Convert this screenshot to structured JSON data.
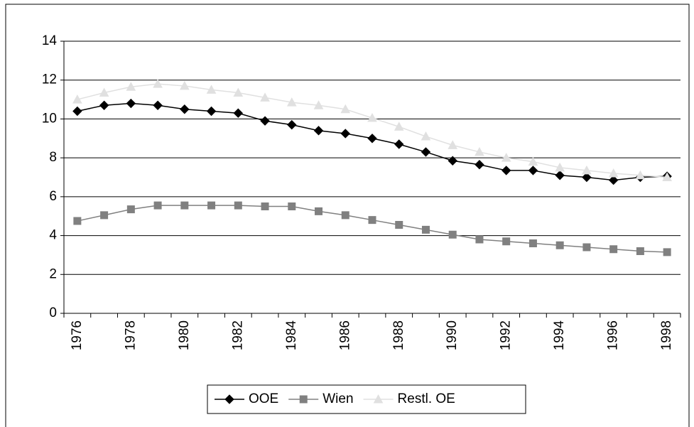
{
  "chart_data": {
    "type": "line",
    "categories": [
      "1976",
      null,
      "1978",
      null,
      "1980",
      null,
      "1982",
      null,
      "1984",
      null,
      "1986",
      null,
      "1988",
      null,
      "1990",
      null,
      "1992",
      null,
      "1994",
      null,
      "1996",
      null,
      "1998"
    ],
    "series": [
      {
        "name": "OOE",
        "color": "#000000",
        "marker": "diamond",
        "values": [
          10.4,
          10.7,
          10.8,
          10.7,
          10.5,
          10.4,
          10.3,
          9.9,
          9.7,
          9.4,
          9.25,
          9.0,
          8.7,
          8.3,
          7.85,
          7.65,
          7.35,
          7.35,
          7.1,
          7.0,
          6.85,
          7.0,
          7.05
        ]
      },
      {
        "name": "Wien",
        "color": "#808080",
        "marker": "square",
        "values": [
          4.75,
          5.05,
          5.35,
          5.55,
          5.55,
          5.55,
          5.55,
          5.5,
          5.5,
          5.25,
          5.05,
          4.8,
          4.55,
          4.3,
          4.05,
          3.8,
          3.7,
          3.6,
          3.5,
          3.4,
          3.3,
          3.2,
          3.15
        ]
      },
      {
        "name": "Restl. OE",
        "color": "#e0e0e0",
        "marker": "triangle",
        "values": [
          11.0,
          11.35,
          11.65,
          11.8,
          11.7,
          11.5,
          11.35,
          11.1,
          10.85,
          10.7,
          10.5,
          10.05,
          9.6,
          9.1,
          8.65,
          8.3,
          8.0,
          7.8,
          7.5,
          7.35,
          7.2,
          7.1,
          7.0
        ]
      }
    ],
    "ylim": [
      0,
      14
    ],
    "yticks": [
      0,
      2,
      4,
      6,
      8,
      10,
      12,
      14
    ],
    "grid": true,
    "legend": "bottom"
  }
}
